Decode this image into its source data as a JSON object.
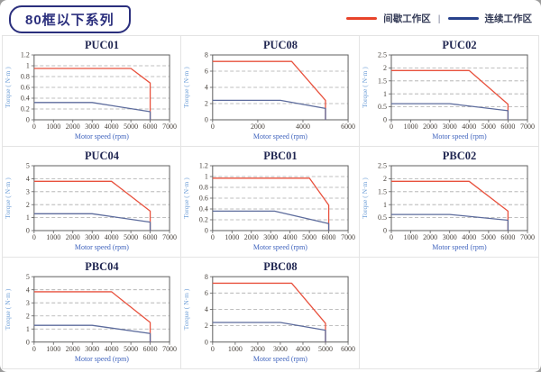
{
  "page": {
    "badge": "80框以下系列"
  },
  "legend": {
    "separator": "|",
    "items": [
      {
        "label": "间歇工作区",
        "zone": "intermittent",
        "color": "#e8432a"
      },
      {
        "label": "连续工作区",
        "zone": "continuous",
        "color": "#27418b"
      }
    ]
  },
  "colors": {
    "intermittent": "#e8513d",
    "continuous": "#5c6b9c",
    "legend_intermittent": "#e8432a",
    "legend_continuous": "#27418b",
    "axis": "#5f5f5f",
    "grid": "#ababab",
    "title_text": "#1f2550",
    "badge_text": "#2b2f7d"
  },
  "chart_data": [
    {
      "type": "line",
      "title": "PUC01",
      "xlabel": "Motor speed (rpm)",
      "ylabel": "Torque ( N·m )",
      "xlim": [
        0,
        7000
      ],
      "ylim": [
        0,
        1.2
      ],
      "xticks": [
        0,
        1000,
        2000,
        3000,
        4000,
        5000,
        6000,
        7000
      ],
      "yticks": [
        0,
        0.2,
        0.4,
        0.6,
        0.8,
        1,
        1.2
      ],
      "grid": "dashed-horizontal",
      "legend_position": "none",
      "series": [
        {
          "name": "间歇工作区",
          "zone": "intermittent",
          "points": [
            [
              0,
              0.95
            ],
            [
              5000,
              0.95
            ],
            [
              6000,
              0.68
            ],
            [
              6000,
              0
            ]
          ]
        },
        {
          "name": "连续工作区",
          "zone": "continuous",
          "points": [
            [
              0,
              0.32
            ],
            [
              3000,
              0.32
            ],
            [
              6000,
              0.15
            ],
            [
              6000,
              0
            ]
          ]
        }
      ]
    },
    {
      "type": "line",
      "title": "PUC08",
      "xlabel": "Motor speed (rpm)",
      "ylabel": "Torque ( N·m )",
      "xlim": [
        0,
        6000
      ],
      "ylim": [
        0,
        8
      ],
      "xticks": [
        0,
        2000,
        4000,
        6000
      ],
      "yticks": [
        0,
        2,
        4,
        6,
        8
      ],
      "grid": "dashed-horizontal",
      "legend_position": "none",
      "series": [
        {
          "name": "间歇工作区",
          "zone": "intermittent",
          "points": [
            [
              0,
              7.2
            ],
            [
              3500,
              7.2
            ],
            [
              5000,
              2.4
            ],
            [
              5000,
              0
            ]
          ]
        },
        {
          "name": "连续工作区",
          "zone": "continuous",
          "points": [
            [
              0,
              2.4
            ],
            [
              3000,
              2.4
            ],
            [
              5000,
              1.4
            ],
            [
              5000,
              0
            ]
          ]
        }
      ]
    },
    {
      "type": "line",
      "title": "PUC02",
      "xlabel": "Motor speed (rpm)",
      "ylabel": "Torque ( N·m )",
      "xlim": [
        0,
        7000
      ],
      "ylim": [
        0,
        2.5
      ],
      "xticks": [
        0,
        1000,
        2000,
        3000,
        4000,
        5000,
        6000,
        7000
      ],
      "yticks": [
        0,
        0.5,
        1,
        1.5,
        2,
        2.5
      ],
      "grid": "dashed-horizontal",
      "legend_position": "none",
      "series": [
        {
          "name": "间歇工作区",
          "zone": "intermittent",
          "points": [
            [
              0,
              1.9
            ],
            [
              4000,
              1.9
            ],
            [
              6000,
              0.6
            ],
            [
              6000,
              0
            ]
          ]
        },
        {
          "name": "连续工作区",
          "zone": "continuous",
          "points": [
            [
              0,
              0.62
            ],
            [
              3000,
              0.62
            ],
            [
              6000,
              0.35
            ],
            [
              6000,
              0
            ]
          ]
        }
      ]
    },
    {
      "type": "line",
      "title": "PUC04",
      "xlabel": "Motor speed (rpm)",
      "ylabel": "Torque ( N·m )",
      "xlim": [
        0,
        7000
      ],
      "ylim": [
        0,
        5
      ],
      "xticks": [
        0,
        1000,
        2000,
        3000,
        4000,
        5000,
        6000,
        7000
      ],
      "yticks": [
        0,
        1,
        2,
        3,
        4,
        5
      ],
      "grid": "dashed-horizontal",
      "legend_position": "none",
      "series": [
        {
          "name": "间歇工作区",
          "zone": "intermittent",
          "points": [
            [
              0,
              3.8
            ],
            [
              4000,
              3.8
            ],
            [
              6000,
              1.5
            ],
            [
              6000,
              0
            ]
          ]
        },
        {
          "name": "连续工作区",
          "zone": "continuous",
          "points": [
            [
              0,
              1.3
            ],
            [
              3000,
              1.3
            ],
            [
              6000,
              0.65
            ],
            [
              6000,
              0
            ]
          ]
        }
      ]
    },
    {
      "type": "line",
      "title": "PBC01",
      "xlabel": "Motor speed (rpm)",
      "ylabel": "Torque ( N·m )",
      "xlim": [
        0,
        7000
      ],
      "ylim": [
        0,
        1.2
      ],
      "xticks": [
        0,
        1000,
        2000,
        3000,
        4000,
        5000,
        6000,
        7000
      ],
      "yticks": [
        0,
        0.2,
        0.4,
        0.6,
        0.8,
        1,
        1.2
      ],
      "grid": "dashed-horizontal",
      "legend_position": "none",
      "series": [
        {
          "name": "间歇工作区",
          "zone": "intermittent",
          "points": [
            [
              0,
              0.97
            ],
            [
              5000,
              0.97
            ],
            [
              6000,
              0.47
            ],
            [
              6000,
              0
            ]
          ]
        },
        {
          "name": "连续工作区",
          "zone": "continuous",
          "points": [
            [
              0,
              0.36
            ],
            [
              3200,
              0.36
            ],
            [
              6000,
              0.13
            ],
            [
              6000,
              0
            ]
          ]
        }
      ]
    },
    {
      "type": "line",
      "title": "PBC02",
      "xlabel": "Motor speed (rpm)",
      "ylabel": "Torque ( N·m )",
      "xlim": [
        0,
        7000
      ],
      "ylim": [
        0,
        2.5
      ],
      "xticks": [
        0,
        1000,
        2000,
        3000,
        4000,
        5000,
        6000,
        7000
      ],
      "yticks": [
        0,
        0.5,
        1,
        1.5,
        2,
        2.5
      ],
      "grid": "dashed-horizontal",
      "legend_position": "none",
      "series": [
        {
          "name": "间歇工作区",
          "zone": "intermittent",
          "points": [
            [
              0,
              1.9
            ],
            [
              4000,
              1.9
            ],
            [
              6000,
              0.75
            ],
            [
              6000,
              0
            ]
          ]
        },
        {
          "name": "连续工作区",
          "zone": "continuous",
          "points": [
            [
              0,
              0.62
            ],
            [
              3000,
              0.62
            ],
            [
              6000,
              0.4
            ],
            [
              6000,
              0
            ]
          ]
        }
      ]
    },
    {
      "type": "line",
      "title": "PBC04",
      "xlabel": "Motor speed (rpm)",
      "ylabel": "Torque ( N·m )",
      "xlim": [
        0,
        7000
      ],
      "ylim": [
        0,
        5
      ],
      "xticks": [
        0,
        1000,
        2000,
        3000,
        4000,
        5000,
        6000,
        7000
      ],
      "yticks": [
        0,
        1,
        2,
        3,
        4,
        5
      ],
      "grid": "dashed-horizontal",
      "legend_position": "none",
      "series": [
        {
          "name": "间歇工作区",
          "zone": "intermittent",
          "points": [
            [
              0,
              3.85
            ],
            [
              4000,
              3.85
            ],
            [
              6000,
              1.5
            ],
            [
              6000,
              0
            ]
          ]
        },
        {
          "name": "连续工作区",
          "zone": "continuous",
          "points": [
            [
              0,
              1.28
            ],
            [
              3000,
              1.28
            ],
            [
              6000,
              0.65
            ],
            [
              6000,
              0
            ]
          ]
        }
      ]
    },
    {
      "type": "line",
      "title": "PBC08",
      "xlabel": "Motor speed (rpm)",
      "ylabel": "Torque ( N·m )",
      "xlim": [
        0,
        6000
      ],
      "ylim": [
        0,
        8
      ],
      "xticks": [
        0,
        1000,
        2000,
        3000,
        4000,
        5000,
        6000
      ],
      "yticks": [
        0,
        2,
        4,
        6,
        8
      ],
      "grid": "dashed-horizontal",
      "legend_position": "none",
      "series": [
        {
          "name": "间歇工作区",
          "zone": "intermittent",
          "points": [
            [
              0,
              7.2
            ],
            [
              3500,
              7.2
            ],
            [
              5000,
              2.3
            ],
            [
              5000,
              0
            ]
          ]
        },
        {
          "name": "连续工作区",
          "zone": "continuous",
          "points": [
            [
              0,
              2.4
            ],
            [
              3000,
              2.4
            ],
            [
              5000,
              1.45
            ],
            [
              5000,
              0
            ]
          ]
        }
      ]
    }
  ]
}
